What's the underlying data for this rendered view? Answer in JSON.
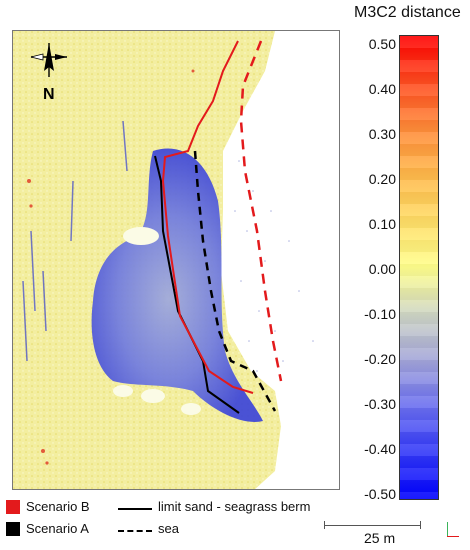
{
  "scale": {
    "title": "M3C2 distance",
    "ticks": [
      "0.50",
      "0.40",
      "0.30",
      "0.20",
      "0.10",
      "0.00",
      "-0.10",
      "-0.20",
      "-0.30",
      "-0.40",
      "-0.50"
    ],
    "range": [
      -0.5,
      0.5
    ],
    "colors": {
      "max": "#ff0000",
      "zero": "#ffff8c",
      "min": "#0000ff"
    }
  },
  "map": {
    "north_label": "N",
    "scenario_b_color": "#e31a1c",
    "scenario_a_color": "#000000"
  },
  "legend": {
    "scenario_b": "Scenario B",
    "scenario_a": "Scenario A",
    "limit_line": "limit sand - seagrass berm",
    "sea_line": "sea"
  },
  "scalebar": {
    "label": "25 m"
  }
}
